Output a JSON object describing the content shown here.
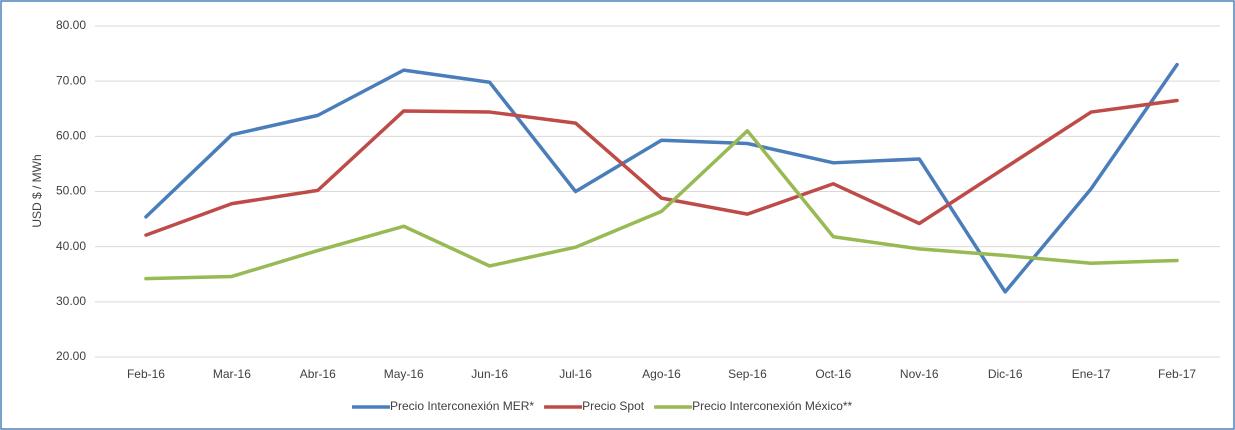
{
  "chart_data": {
    "type": "line",
    "y_label": "USD $ / MWh",
    "categories": [
      "Feb-16",
      "Mar-16",
      "Abr-16",
      "May-16",
      "Jun-16",
      "Jul-16",
      "Ago-16",
      "Sep-16",
      "Oct-16",
      "Nov-16",
      "Dic-16",
      "Ene-17",
      "Feb-17"
    ],
    "series": [
      {
        "name": "Precio Interconexión MER*",
        "color": "#4a7ebb",
        "values": [
          45.4,
          60.3,
          63.8,
          72.0,
          69.8,
          50.0,
          59.3,
          58.7,
          55.2,
          55.9,
          31.8,
          50.5,
          73.0
        ]
      },
      {
        "name": "Precio Spot",
        "color": "#be4b48",
        "values": [
          42.1,
          47.8,
          50.2,
          64.6,
          64.4,
          62.4,
          48.8,
          45.9,
          51.4,
          44.2,
          54.3,
          64.4,
          66.5
        ]
      },
      {
        "name": "Precio Interconexión México**",
        "color": "#98b954",
        "values": [
          34.2,
          34.6,
          39.3,
          43.7,
          36.5,
          39.9,
          46.4,
          61.0,
          41.8,
          39.6,
          38.4,
          37.0,
          37.5
        ]
      }
    ],
    "ylim": [
      20,
      80
    ],
    "yticks": [
      {
        "value": 20,
        "label": "20.00"
      },
      {
        "value": 30,
        "label": "30.00"
      },
      {
        "value": 40,
        "label": "40.00"
      },
      {
        "value": 50,
        "label": "50.00"
      },
      {
        "value": 60,
        "label": "60.00"
      },
      {
        "value": 70,
        "label": "70.00"
      },
      {
        "value": 80,
        "label": "80.00"
      }
    ],
    "grid": true,
    "legend": "bottom"
  }
}
